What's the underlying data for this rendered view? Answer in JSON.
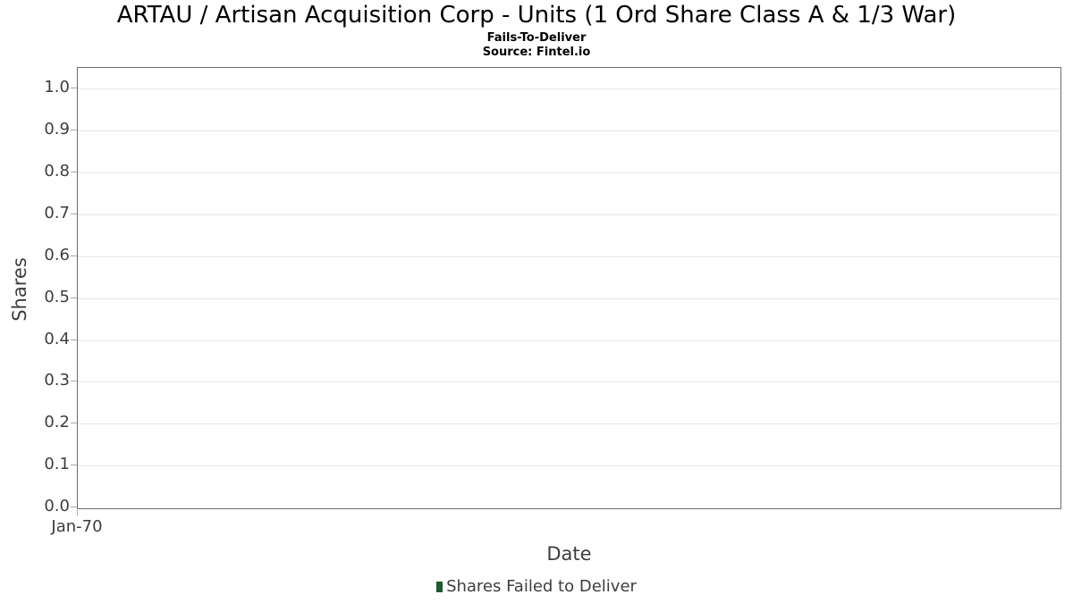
{
  "header": {
    "title": "ARTAU / Artisan Acquisition Corp - Units (1 Ord Share Class A & 1/3 War)",
    "subtitle": "Fails-To-Deliver",
    "source": "Source: Fintel.io"
  },
  "chart_data": {
    "type": "bar",
    "title": "ARTAU / Artisan Acquisition Corp - Units (1 Ord Share Class A & 1/3 War)",
    "subtitle": "Fails-To-Deliver",
    "source": "Source: Fintel.io",
    "xlabel": "Date",
    "ylabel": "Shares",
    "x": [
      "Jan-70"
    ],
    "xticks": [
      "Jan-70"
    ],
    "yticks": [
      "0.0",
      "0.1",
      "0.2",
      "0.3",
      "0.4",
      "0.5",
      "0.6",
      "0.7",
      "0.8",
      "0.9",
      "1.0"
    ],
    "ylim": [
      0.0,
      1.05
    ],
    "grid": "horizontal",
    "legend_position": "bottom-center",
    "series": [
      {
        "name": "Shares Failed to Deliver",
        "color": "#1e5a32",
        "values": []
      }
    ],
    "note": "no data plotted; axes empty"
  },
  "legend": {
    "items": [
      {
        "label": "Shares Failed to Deliver",
        "color": "#1e5a32"
      }
    ]
  },
  "colors": {
    "gridline": "#e7e7e7",
    "plot_border": "#6e6e6e",
    "tick_mark": "#a9a9a9",
    "axis_text": "#3d3d3d",
    "title_text": "#000000",
    "series_green": "#1e5a32"
  }
}
